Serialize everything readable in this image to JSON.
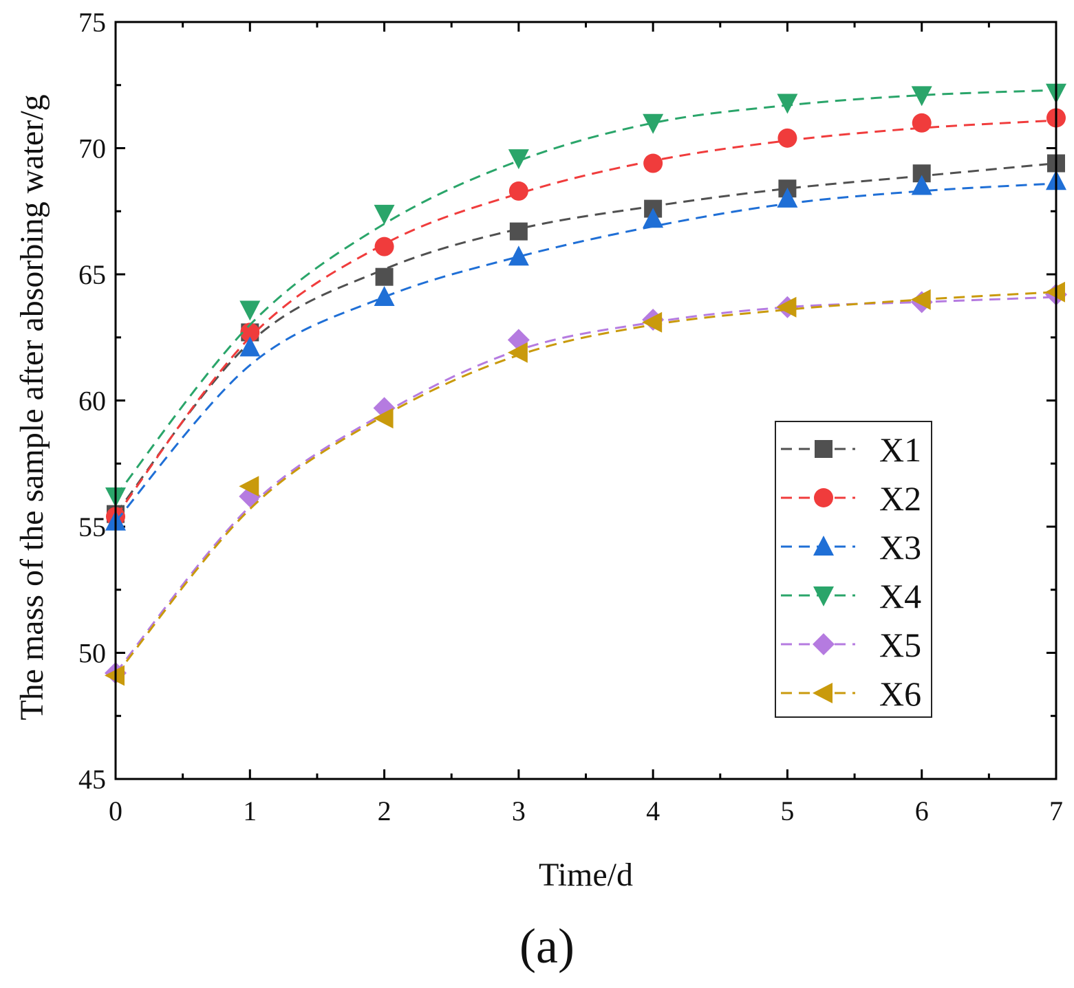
{
  "chart_data": {
    "type": "line",
    "title": "",
    "xlabel": "Time/d",
    "ylabel": "The mass of the sample after absorbing water/g",
    "xlim": [
      0,
      7
    ],
    "ylim": [
      45,
      75
    ],
    "x_ticks": [
      0,
      1,
      2,
      3,
      4,
      5,
      6,
      7
    ],
    "y_ticks": [
      45,
      50,
      55,
      60,
      65,
      70,
      75
    ],
    "x_tick_labels": [
      "0",
      "1",
      "2",
      "3",
      "4",
      "5",
      "6",
      "7"
    ],
    "y_tick_labels": [
      "45",
      "50",
      "55",
      "60",
      "65",
      "70",
      "75"
    ],
    "legend_position": "center-right",
    "panel_label": "(a)",
    "x": [
      0,
      1,
      2,
      3,
      4,
      5,
      6,
      7
    ],
    "series": [
      {
        "name": "X1",
        "color": "#505050",
        "marker": "square",
        "values": [
          55.5,
          62.7,
          64.9,
          66.7,
          67.6,
          68.4,
          69.0,
          69.4
        ],
        "fit": [
          55.5,
          62.3,
          65.2,
          66.8,
          67.7,
          68.4,
          68.9,
          69.4
        ]
      },
      {
        "name": "X2",
        "color": "#f03c3c",
        "marker": "circle",
        "values": [
          55.4,
          62.7,
          66.1,
          68.3,
          69.4,
          70.4,
          71.0,
          71.2
        ],
        "fit": [
          55.4,
          62.5,
          66.2,
          68.2,
          69.5,
          70.3,
          70.8,
          71.1
        ]
      },
      {
        "name": "X3",
        "color": "#1f6fd6",
        "marker": "triangle-up",
        "values": [
          55.2,
          62.1,
          64.1,
          65.7,
          67.2,
          68.0,
          68.5,
          68.7
        ],
        "fit": [
          55.2,
          61.4,
          64.1,
          65.7,
          66.9,
          67.8,
          68.3,
          68.6
        ]
      },
      {
        "name": "X4",
        "color": "#2aa56a",
        "marker": "triangle-down",
        "values": [
          56.2,
          63.6,
          67.4,
          69.6,
          71.0,
          71.8,
          72.1,
          72.2
        ],
        "fit": [
          56.2,
          63.0,
          67.0,
          69.5,
          71.0,
          71.7,
          72.1,
          72.3
        ]
      },
      {
        "name": "X5",
        "color": "#b57be0",
        "marker": "diamond",
        "values": [
          49.2,
          56.2,
          59.7,
          62.4,
          63.2,
          63.7,
          63.9,
          64.2
        ],
        "fit": [
          49.2,
          55.8,
          59.5,
          62.0,
          63.1,
          63.7,
          63.9,
          64.1
        ]
      },
      {
        "name": "X6",
        "color": "#c99a0c",
        "marker": "triangle-left",
        "values": [
          49.1,
          56.6,
          59.3,
          61.9,
          63.1,
          63.7,
          64.0,
          64.3
        ],
        "fit": [
          49.1,
          55.7,
          59.4,
          61.8,
          63.0,
          63.6,
          64.0,
          64.3
        ]
      }
    ]
  }
}
